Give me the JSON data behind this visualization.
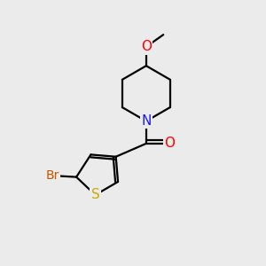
{
  "background_color": "#ebebeb",
  "atom_colors": {
    "C": "#000000",
    "N": "#1a1aff",
    "O": "#ff0000",
    "S": "#ccaa00",
    "Br": "#cc5500"
  },
  "figsize": [
    3.0,
    3.0
  ],
  "dpi": 100,
  "bond_lw": 1.6,
  "font_size": 10
}
